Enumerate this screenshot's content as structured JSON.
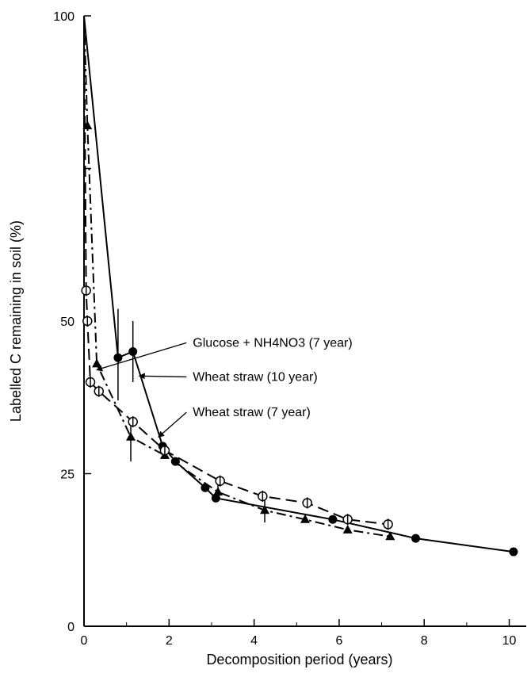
{
  "chart_data": {
    "type": "line",
    "title": "",
    "xlabel": "Decomposition period (years)",
    "ylabel": "Labelled C remaining in soil (%)",
    "xlim": [
      0,
      10.4
    ],
    "ylim": [
      0,
      100
    ],
    "x_ticks": [
      0,
      2,
      4,
      6,
      8,
      10
    ],
    "y_ticks": [
      0,
      25,
      50,
      100
    ],
    "x_tick_labels": [
      "0",
      "2",
      "4",
      "6",
      "8",
      "10"
    ],
    "y_tick_labels": [
      "0",
      "25",
      "50",
      "100"
    ],
    "grid": false,
    "legend": "none",
    "series": [
      {
        "name": "Glucose + NH4NO3 (7 year)",
        "marker": "triangle-filled",
        "line_style": "dash-dot",
        "points": [
          {
            "x": 0,
            "y": 100
          },
          {
            "x": 0.08,
            "y": 82
          },
          {
            "x": 0.3,
            "y": 43
          },
          {
            "x": 1.1,
            "y": 31
          },
          {
            "x": 1.9,
            "y": 28
          },
          {
            "x": 3.15,
            "y": 22
          },
          {
            "x": 4.25,
            "y": 19
          },
          {
            "x": 5.2,
            "y": 17.5
          },
          {
            "x": 6.2,
            "y": 15.8
          },
          {
            "x": 7.2,
            "y": 14.7
          }
        ]
      },
      {
        "name": "Wheat straw (10 year)",
        "marker": "circle-filled",
        "line_style": "solid",
        "points": [
          {
            "x": 0,
            "y": 100
          },
          {
            "x": 0.8,
            "y": 44
          },
          {
            "x": 1.15,
            "y": 45
          },
          {
            "x": 1.85,
            "y": 29.5
          },
          {
            "x": 2.15,
            "y": 27
          },
          {
            "x": 2.85,
            "y": 22.7
          },
          {
            "x": 3.1,
            "y": 21
          },
          {
            "x": 5.85,
            "y": 17.5
          },
          {
            "x": 7.8,
            "y": 14.4
          },
          {
            "x": 10.1,
            "y": 12.2
          }
        ]
      },
      {
        "name": "Wheat straw (7 year)",
        "marker": "circle-open-barred",
        "line_style": "dashed",
        "points": [
          {
            "x": 0,
            "y": 100
          },
          {
            "x": 0.05,
            "y": 55
          },
          {
            "x": 0.08,
            "y": 50
          },
          {
            "x": 0.15,
            "y": 40
          },
          {
            "x": 0.35,
            "y": 38.5
          },
          {
            "x": 1.15,
            "y": 33.5
          },
          {
            "x": 1.9,
            "y": 28.8
          },
          {
            "x": 3.2,
            "y": 23.8
          },
          {
            "x": 4.2,
            "y": 21.3
          },
          {
            "x": 5.25,
            "y": 20.2
          },
          {
            "x": 6.2,
            "y": 17.5
          },
          {
            "x": 7.15,
            "y": 16.7
          }
        ]
      }
    ],
    "error_bars": [
      {
        "series": "Wheat straw (10 year)",
        "x": 0.8,
        "low": 37,
        "high": 52
      },
      {
        "series": "Wheat straw (10 year)",
        "x": 1.15,
        "low": 40,
        "high": 50
      },
      {
        "series": "Glucose + NH4NO3 (7 year)",
        "x": 1.1,
        "low": 27,
        "high": 34
      },
      {
        "series": "Glucose + NH4NO3 (7 year)",
        "x": 3.15,
        "low": 20.5,
        "high": 24
      },
      {
        "series": "Glucose + NH4NO3 (7 year)",
        "x": 4.25,
        "low": 17,
        "high": 21.5
      }
    ],
    "annotations": [
      {
        "text": "Glucose + NH4NO3 (7 year)",
        "label_x": 2.0,
        "label_y": 45.8,
        "arrow_to": {
          "x": 0.3,
          "y": 42
        }
      },
      {
        "text": "Wheat straw (10 year)",
        "label_x": 2.0,
        "label_y": 40.2,
        "arrow_to": {
          "x": 1.3,
          "y": 41
        }
      },
      {
        "text": "Wheat straw (7 year)",
        "label_x": 2.0,
        "label_y": 34.4,
        "arrow_to": {
          "x": 1.75,
          "y": 31
        }
      }
    ]
  }
}
